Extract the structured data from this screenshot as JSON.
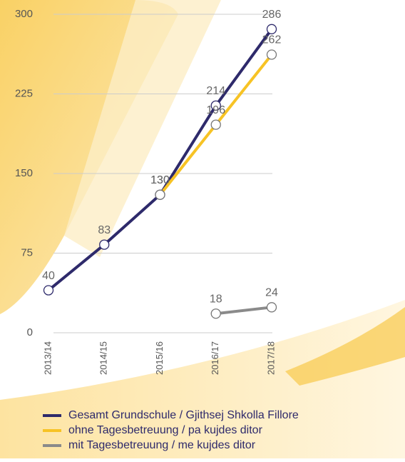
{
  "chart_data": {
    "type": "line",
    "categories": [
      "2013/14",
      "2014/15",
      "2015/16",
      "2016/17",
      "2017/18"
    ],
    "series": [
      {
        "name": "Gesamt Grundschule / Gjithsej Shkolla Fillore",
        "color": "#2e2a6b",
        "values": [
          40,
          83,
          130,
          214,
          286
        ]
      },
      {
        "name": "ohne Tagesbetreuung / pa kujdes ditor",
        "color": "#f7c325",
        "values": [
          null,
          null,
          130,
          196,
          262
        ]
      },
      {
        "name": "mit Tagesbetreuung / me kujdes ditor",
        "color": "#8a8a8a",
        "values": [
          null,
          null,
          null,
          18,
          24
        ]
      }
    ],
    "ylim": [
      0,
      300
    ],
    "yticks": [
      0,
      75,
      150,
      225,
      300
    ],
    "grid": true
  }
}
